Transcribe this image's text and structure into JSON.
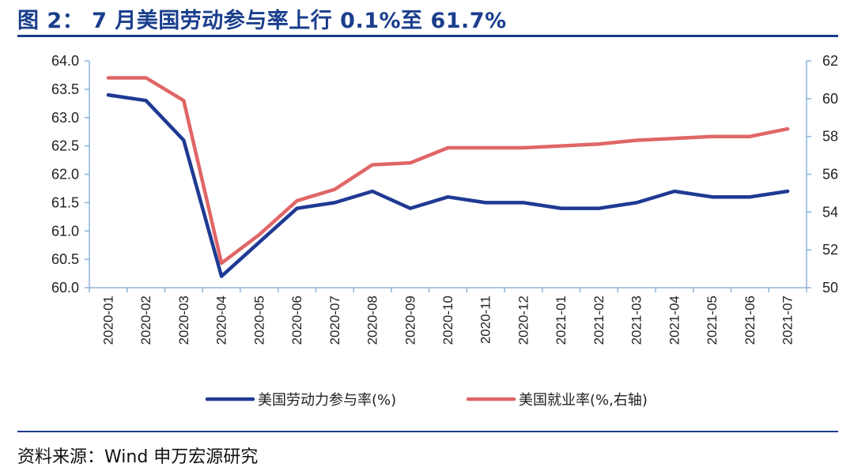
{
  "header": {
    "title": "图 2： 7 月美国劳动参与率上行 0.1%至 61.7%"
  },
  "footer": {
    "source": "资料来源：Wind  申万宏源研究"
  },
  "chart_data": {
    "type": "line",
    "x": [
      "2020-01",
      "2020-02",
      "2020-03",
      "2020-04",
      "2020-05",
      "2020-06",
      "2020-07",
      "2020-08",
      "2020-09",
      "2020-10",
      "2020-11",
      "2020-12",
      "2021-01",
      "2021-02",
      "2021-03",
      "2021-04",
      "2021-05",
      "2021-06",
      "2021-07"
    ],
    "left_axis": {
      "ylim": [
        60.0,
        64.0
      ],
      "ticks": [
        "60.0",
        "60.5",
        "61.0",
        "61.5",
        "62.0",
        "62.5",
        "63.0",
        "63.5",
        "64.0"
      ]
    },
    "right_axis": {
      "ylim": [
        50,
        62
      ],
      "ticks": [
        "50",
        "52",
        "54",
        "56",
        "58",
        "60",
        "62"
      ]
    },
    "series": [
      {
        "name": "美国劳动力参与率(%)",
        "axis": "left",
        "color": "#1f3a93",
        "values": [
          63.4,
          63.3,
          62.6,
          60.2,
          60.8,
          61.4,
          61.5,
          61.7,
          61.4,
          61.6,
          61.5,
          61.5,
          61.4,
          61.4,
          61.5,
          61.7,
          61.6,
          61.6,
          61.7
        ]
      },
      {
        "name": "美国就业率(%,右轴)",
        "axis": "right",
        "color": "#e06666",
        "values": [
          61.1,
          61.1,
          59.9,
          51.3,
          52.8,
          54.6,
          55.2,
          56.5,
          56.6,
          57.4,
          57.4,
          57.4,
          57.5,
          57.6,
          57.8,
          57.9,
          58.0,
          58.0,
          58.4
        ]
      }
    ],
    "legend_position": "bottom",
    "grid": false
  }
}
